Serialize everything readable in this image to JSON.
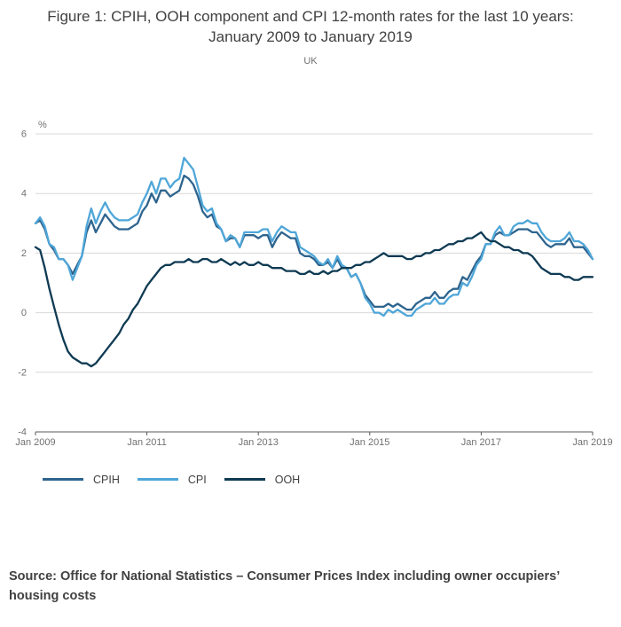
{
  "source": "Source: Office for National Statistics – Consumer Prices Index including owner occupiers’ housing costs",
  "chart_data": {
    "type": "line",
    "title": "Figure 1: CPIH, OOH component and CPI 12-month rates for the last 10 years: January 2009 to January 2019",
    "subtitle": "UK",
    "unit_label": "%",
    "region": "UK",
    "x_frequency": "monthly",
    "x_start": "Jan 2009",
    "x_end": "Jan 2019",
    "x_tick_labels": [
      "Jan 2009",
      "Jan 2011",
      "Jan 2013",
      "Jan 2015",
      "Jan 2017",
      "Jan 2019"
    ],
    "y_ticks": [
      -4,
      -2,
      0,
      2,
      4,
      6
    ],
    "ylim": [
      -4,
      6
    ],
    "grid": "horizontal",
    "legend_position": "bottom",
    "grid_color": "#d9d9d9",
    "axis_color": "#595959",
    "tick_label_color": "#707071",
    "series": [
      {
        "name": "CPIH",
        "color": "#2e648e",
        "values": [
          3.0,
          3.1,
          2.8,
          2.3,
          2.1,
          1.8,
          1.8,
          1.6,
          1.3,
          1.6,
          1.9,
          2.7,
          3.1,
          2.7,
          3.0,
          3.3,
          3.1,
          2.9,
          2.8,
          2.8,
          2.8,
          2.9,
          3.0,
          3.4,
          3.6,
          4.0,
          3.7,
          4.1,
          4.1,
          3.9,
          4.0,
          4.1,
          4.6,
          4.5,
          4.3,
          3.9,
          3.4,
          3.2,
          3.3,
          2.9,
          2.8,
          2.4,
          2.5,
          2.5,
          2.2,
          2.6,
          2.6,
          2.6,
          2.5,
          2.6,
          2.6,
          2.2,
          2.5,
          2.7,
          2.6,
          2.5,
          2.5,
          2.0,
          1.9,
          1.9,
          1.8,
          1.6,
          1.6,
          1.7,
          1.5,
          1.8,
          1.5,
          1.5,
          1.2,
          1.3,
          1.0,
          0.6,
          0.4,
          0.2,
          0.2,
          0.2,
          0.3,
          0.2,
          0.3,
          0.2,
          0.1,
          0.1,
          0.3,
          0.4,
          0.5,
          0.5,
          0.7,
          0.5,
          0.5,
          0.7,
          0.8,
          0.8,
          1.2,
          1.1,
          1.4,
          1.7,
          1.9,
          2.3,
          2.3,
          2.6,
          2.7,
          2.6,
          2.6,
          2.7,
          2.8,
          2.8,
          2.8,
          2.7,
          2.7,
          2.5,
          2.3,
          2.2,
          2.3,
          2.3,
          2.3,
          2.5,
          2.2,
          2.2,
          2.2,
          2.0,
          1.8
        ]
      },
      {
        "name": "CPI",
        "color": "#4fa6d8",
        "values": [
          3.0,
          3.2,
          2.9,
          2.3,
          2.2,
          1.8,
          1.8,
          1.6,
          1.1,
          1.5,
          1.9,
          2.9,
          3.5,
          3.0,
          3.4,
          3.7,
          3.4,
          3.2,
          3.1,
          3.1,
          3.1,
          3.2,
          3.3,
          3.7,
          4.0,
          4.4,
          4.0,
          4.5,
          4.5,
          4.2,
          4.4,
          4.5,
          5.2,
          5.0,
          4.8,
          4.2,
          3.6,
          3.4,
          3.5,
          3.0,
          2.8,
          2.4,
          2.6,
          2.5,
          2.2,
          2.7,
          2.7,
          2.7,
          2.7,
          2.8,
          2.8,
          2.4,
          2.7,
          2.9,
          2.8,
          2.7,
          2.7,
          2.2,
          2.1,
          2.0,
          1.9,
          1.7,
          1.6,
          1.8,
          1.5,
          1.9,
          1.6,
          1.5,
          1.2,
          1.3,
          1.0,
          0.5,
          0.3,
          0.0,
          0.0,
          -0.1,
          0.1,
          0.0,
          0.1,
          0.0,
          -0.1,
          -0.1,
          0.1,
          0.2,
          0.3,
          0.3,
          0.5,
          0.3,
          0.3,
          0.5,
          0.6,
          0.6,
          1.0,
          0.9,
          1.2,
          1.6,
          1.8,
          2.3,
          2.3,
          2.7,
          2.9,
          2.6,
          2.6,
          2.9,
          3.0,
          3.0,
          3.1,
          3.0,
          3.0,
          2.7,
          2.5,
          2.4,
          2.4,
          2.4,
          2.5,
          2.7,
          2.4,
          2.4,
          2.3,
          2.1,
          1.8
        ]
      },
      {
        "name": "OOH",
        "color": "#0e3a53",
        "values": [
          2.2,
          2.1,
          1.5,
          0.8,
          0.2,
          -0.4,
          -0.9,
          -1.3,
          -1.5,
          -1.6,
          -1.7,
          -1.7,
          -1.8,
          -1.7,
          -1.5,
          -1.3,
          -1.1,
          -0.9,
          -0.7,
          -0.4,
          -0.2,
          0.1,
          0.3,
          0.6,
          0.9,
          1.1,
          1.3,
          1.5,
          1.6,
          1.6,
          1.7,
          1.7,
          1.7,
          1.8,
          1.7,
          1.7,
          1.8,
          1.8,
          1.7,
          1.7,
          1.8,
          1.7,
          1.6,
          1.7,
          1.6,
          1.7,
          1.6,
          1.6,
          1.7,
          1.6,
          1.6,
          1.5,
          1.5,
          1.5,
          1.4,
          1.4,
          1.4,
          1.3,
          1.3,
          1.4,
          1.3,
          1.3,
          1.4,
          1.3,
          1.4,
          1.4,
          1.5,
          1.5,
          1.5,
          1.6,
          1.6,
          1.7,
          1.7,
          1.8,
          1.9,
          2.0,
          1.9,
          1.9,
          1.9,
          1.9,
          1.8,
          1.8,
          1.9,
          1.9,
          2.0,
          2.0,
          2.1,
          2.1,
          2.2,
          2.3,
          2.3,
          2.4,
          2.4,
          2.5,
          2.5,
          2.6,
          2.7,
          2.5,
          2.4,
          2.4,
          2.3,
          2.2,
          2.2,
          2.1,
          2.1,
          2.0,
          2.0,
          1.9,
          1.7,
          1.5,
          1.4,
          1.3,
          1.3,
          1.3,
          1.2,
          1.2,
          1.1,
          1.1,
          1.2,
          1.2,
          1.2
        ]
      }
    ]
  }
}
